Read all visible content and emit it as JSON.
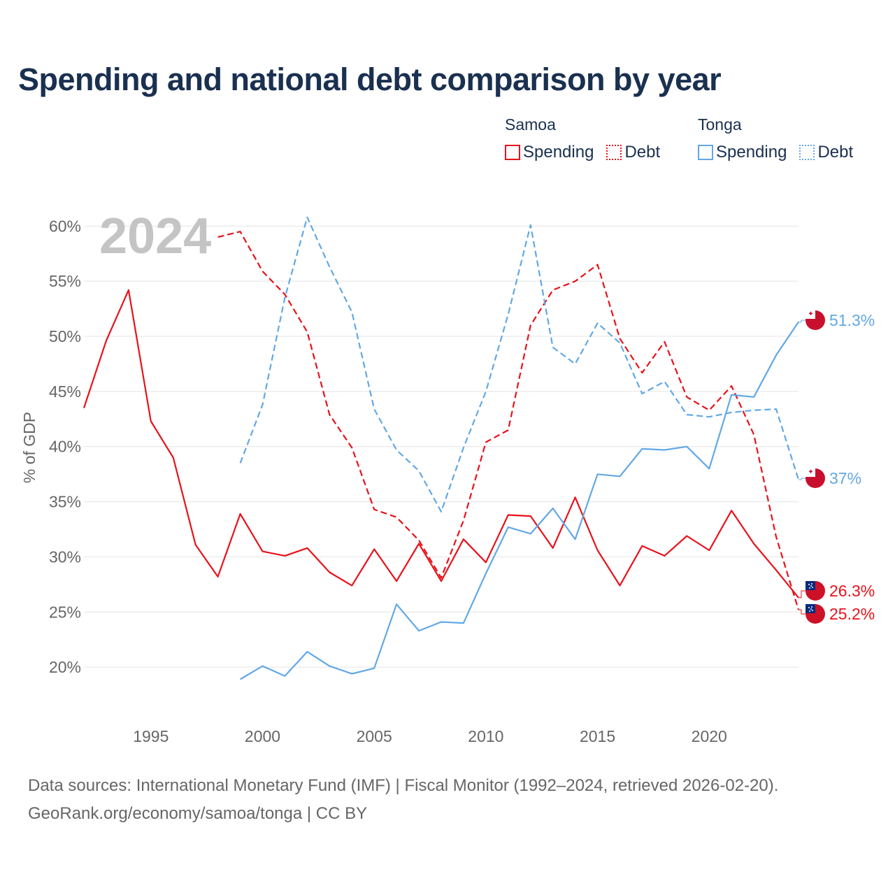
{
  "title": "Spending and national debt comparison by year",
  "legend": {
    "samoa": {
      "country": "Samoa",
      "spending": "Spending",
      "debt": "Debt"
    },
    "tonga": {
      "country": "Tonga",
      "spending": "Spending",
      "debt": "Debt"
    }
  },
  "colors": {
    "samoa": "#e8121b",
    "tonga": "#62a8e5",
    "grid": "#e4e4e4",
    "axis_text": "#666666",
    "year_label": "#c4c4c4"
  },
  "footer": {
    "source": "Data sources: International Monetary Fund (IMF) | Fiscal Monitor (1992–2024, retrieved 2026-02-20).",
    "credit": "GeoRank.org/economy/samoa/tonga | CC BY"
  },
  "chart_data": {
    "type": "line",
    "title": "Spending and national debt comparison by year",
    "year_label": "2024",
    "ylabel": "% of GDP",
    "xlabel": "",
    "xlim": [
      1992,
      2024
    ],
    "ylim": [
      16.5,
      61.5
    ],
    "yticks": [
      20,
      25,
      30,
      35,
      40,
      45,
      50,
      55,
      60
    ],
    "ytick_labels": [
      "20%",
      "25%",
      "30%",
      "35%",
      "40%",
      "45%",
      "50%",
      "55%",
      "60%"
    ],
    "xticks": [
      1995,
      2000,
      2005,
      2010,
      2015,
      2020
    ],
    "xtick_labels": [
      "1995",
      "2000",
      "2005",
      "2010",
      "2015",
      "2020"
    ],
    "grid": true,
    "series": [
      {
        "name": "Samoa Spending",
        "country": "samoa",
        "style": "solid",
        "x": [
          1992,
          1993,
          1994,
          1995,
          1996,
          1997,
          1998,
          1999,
          2000,
          2001,
          2002,
          2003,
          2004,
          2005,
          2006,
          2007,
          2008,
          2009,
          2010,
          2011,
          2012,
          2013,
          2014,
          2015,
          2016,
          2017,
          2018,
          2019,
          2020,
          2021,
          2022,
          2023,
          2024
        ],
        "values": [
          43.5,
          49.6,
          54.2,
          42.3,
          39.0,
          31.1,
          28.2,
          33.9,
          30.5,
          30.1,
          30.8,
          28.6,
          27.4,
          30.7,
          27.8,
          31.2,
          27.8,
          31.6,
          29.5,
          33.8,
          33.7,
          30.8,
          35.4,
          30.6,
          27.4,
          31.0,
          30.1,
          31.9,
          30.6,
          34.2,
          31.2,
          28.8,
          26.3
        ],
        "end_label": "26.3%"
      },
      {
        "name": "Samoa Debt",
        "country": "samoa",
        "style": "dashed",
        "x": [
          1998,
          1999,
          2000,
          2001,
          2002,
          2003,
          2004,
          2005,
          2006,
          2007,
          2008,
          2009,
          2010,
          2011,
          2012,
          2013,
          2014,
          2015,
          2016,
          2017,
          2018,
          2019,
          2020,
          2021,
          2022,
          2023,
          2024
        ],
        "values": [
          59.0,
          59.5,
          55.9,
          53.8,
          50.4,
          42.9,
          39.9,
          34.3,
          33.6,
          31.5,
          28.1,
          33.3,
          40.4,
          41.5,
          51.0,
          54.2,
          55.0,
          56.5,
          49.8,
          46.7,
          49.5,
          44.5,
          43.3,
          45.5,
          41.1,
          31.8,
          25.2
        ],
        "end_label": "25.2%"
      },
      {
        "name": "Tonga Spending",
        "country": "tonga",
        "style": "solid",
        "x": [
          1999,
          2000,
          2001,
          2002,
          2003,
          2004,
          2005,
          2006,
          2007,
          2008,
          2009,
          2010,
          2011,
          2012,
          2013,
          2014,
          2015,
          2016,
          2017,
          2018,
          2019,
          2020,
          2021,
          2022,
          2023,
          2024
        ],
        "values": [
          18.9,
          20.1,
          19.2,
          21.4,
          20.1,
          19.4,
          19.9,
          25.7,
          23.3,
          24.1,
          24.0,
          28.5,
          32.7,
          32.1,
          34.4,
          31.6,
          37.5,
          37.3,
          39.8,
          39.7,
          40.0,
          38.0,
          44.7,
          44.5,
          48.3,
          51.3
        ],
        "end_label": "51.3%"
      },
      {
        "name": "Tonga Debt",
        "country": "tonga",
        "style": "dashed",
        "x": [
          1999,
          2000,
          2001,
          2002,
          2003,
          2004,
          2005,
          2006,
          2007,
          2008,
          2009,
          2010,
          2011,
          2012,
          2013,
          2014,
          2015,
          2016,
          2017,
          2018,
          2019,
          2020,
          2021,
          2022,
          2023,
          2024
        ],
        "values": [
          38.5,
          43.8,
          53.5,
          60.8,
          56.3,
          52.2,
          43.4,
          39.7,
          37.8,
          34.1,
          39.9,
          45.0,
          52.0,
          60.1,
          49.0,
          47.5,
          51.2,
          49.4,
          44.8,
          45.9,
          42.9,
          42.7,
          43.1,
          43.3,
          43.4,
          37.0
        ],
        "end_label": "37%"
      }
    ]
  }
}
